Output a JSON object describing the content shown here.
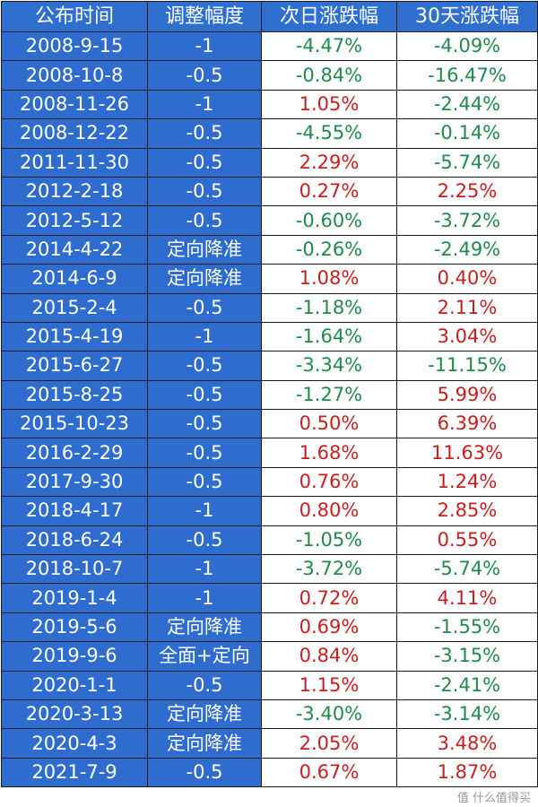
{
  "headers": [
    "公布时间",
    "调整幅度",
    "次日涨跌幅",
    "30天涨跌幅"
  ],
  "rows": [
    {
      "date": "2008-9-15",
      "adjust": "-1",
      "next_day": "-4.47%",
      "d30": "-4.09%"
    },
    {
      "date": "2008-10-8",
      "adjust": "-0.5",
      "next_day": "-0.84%",
      "d30": "-16.47%"
    },
    {
      "date": "2008-11-26",
      "adjust": "-1",
      "next_day": "1.05%",
      "d30": "-2.44%"
    },
    {
      "date": "2008-12-22",
      "adjust": "-0.5",
      "next_day": "-4.55%",
      "d30": "-0.14%"
    },
    {
      "date": "2011-11-30",
      "adjust": "-0.5",
      "next_day": "2.29%",
      "d30": "-5.74%"
    },
    {
      "date": "2012-2-18",
      "adjust": "-0.5",
      "next_day": "0.27%",
      "d30": "2.25%"
    },
    {
      "date": "2012-5-12",
      "adjust": "-0.5",
      "next_day": "-0.60%",
      "d30": "-3.72%"
    },
    {
      "date": "2014-4-22",
      "adjust": "定向降准",
      "next_day": "-0.26%",
      "d30": "-2.49%"
    },
    {
      "date": "2014-6-9",
      "adjust": "定向降准",
      "next_day": "1.08%",
      "d30": "0.40%"
    },
    {
      "date": "2015-2-4",
      "adjust": "-0.5",
      "next_day": "-1.18%",
      "d30": "2.11%"
    },
    {
      "date": "2015-4-19",
      "adjust": "-1",
      "next_day": "-1.64%",
      "d30": "3.04%"
    },
    {
      "date": "2015-6-27",
      "adjust": "-0.5",
      "next_day": "-3.34%",
      "d30": "-11.15%"
    },
    {
      "date": "2015-8-25",
      "adjust": "-0.5",
      "next_day": "-1.27%",
      "d30": "5.99%"
    },
    {
      "date": "2015-10-23",
      "adjust": "-0.5",
      "next_day": "0.50%",
      "d30": "6.39%"
    },
    {
      "date": "2016-2-29",
      "adjust": "-0.5",
      "next_day": "1.68%",
      "d30": "11.63%"
    },
    {
      "date": "2017-9-30",
      "adjust": "-0.5",
      "next_day": "0.76%",
      "d30": "1.24%"
    },
    {
      "date": "2018-4-17",
      "adjust": "-1",
      "next_day": "0.80%",
      "d30": "2.85%"
    },
    {
      "date": "2018-6-24",
      "adjust": "-0.5",
      "next_day": "-1.05%",
      "d30": "0.55%"
    },
    {
      "date": "2018-10-7",
      "adjust": "-1",
      "next_day": "-3.72%",
      "d30": "-5.74%"
    },
    {
      "date": "2019-1-4",
      "adjust": "-1",
      "next_day": "0.72%",
      "d30": "4.11%"
    },
    {
      "date": "2019-5-6",
      "adjust": "定向降准",
      "next_day": "0.69%",
      "d30": "-1.55%"
    },
    {
      "date": "2019-9-6",
      "adjust": "全面+定向",
      "next_day": "0.84%",
      "d30": "-3.15%"
    },
    {
      "date": "2020-1-1",
      "adjust": "-0.5",
      "next_day": "1.15%",
      "d30": "-2.41%"
    },
    {
      "date": "2020-3-13",
      "adjust": "定向降准",
      "next_day": "-3.40%",
      "d30": "-3.14%"
    },
    {
      "date": "2020-4-3",
      "adjust": "定向降准",
      "next_day": "2.05%",
      "d30": "3.48%"
    },
    {
      "date": "2021-7-9",
      "adjust": "-0.5",
      "next_day": "0.67%",
      "d30": "1.87%"
    }
  ],
  "watermark": "值 什么值得买",
  "colors": {
    "header_blue": "#2f6fd0",
    "cell_blue": "#2e6ccf",
    "positive_red": "#c81e1e",
    "negative_green": "#1f8a4c"
  }
}
